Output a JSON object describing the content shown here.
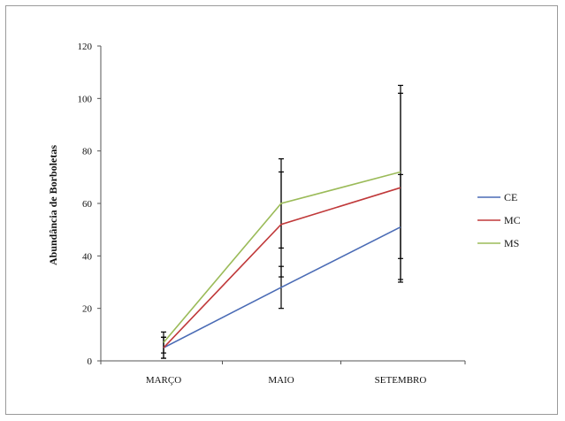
{
  "chart_data": {
    "type": "line",
    "title": "",
    "xlabel": "",
    "ylabel": "Abundância de Borboletas",
    "categories": [
      "MARÇO",
      "MAIO",
      "SETEMBRO"
    ],
    "ylim": [
      0,
      120
    ],
    "yticks": [
      0,
      20,
      40,
      60,
      80,
      100,
      120
    ],
    "grid": false,
    "legend_position": "right",
    "series": [
      {
        "name": "CE",
        "color": "#4a6bb5",
        "values": [
          5,
          28,
          51
        ],
        "error": [
          4,
          8,
          20
        ]
      },
      {
        "name": "MC",
        "color": "#c0393a",
        "values": [
          5,
          52,
          66
        ],
        "error": [
          4,
          20,
          36
        ]
      },
      {
        "name": "MS",
        "color": "#9bbb59",
        "values": [
          7,
          60,
          72
        ],
        "error": [
          4,
          17,
          33
        ]
      }
    ]
  }
}
